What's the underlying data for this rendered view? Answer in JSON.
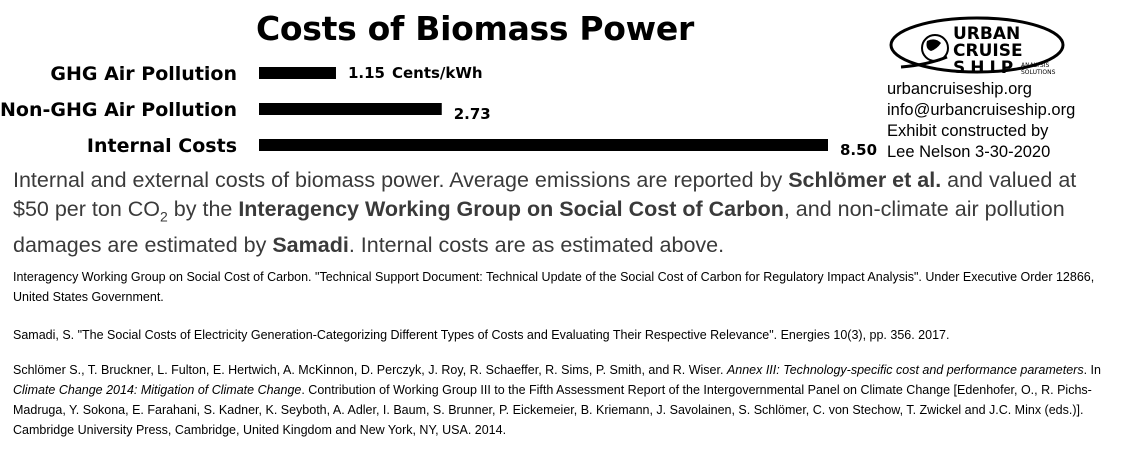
{
  "chart_data": {
    "type": "bar",
    "orientation": "horizontal",
    "title": "Costs of Biomass Power",
    "categories": [
      "GHG Air Pollution",
      "Non-GHG Air Pollution",
      "Internal Costs"
    ],
    "values": [
      1.15,
      2.73,
      8.5
    ],
    "value_labels": [
      "1.15",
      "2.73",
      "8.50"
    ],
    "unit": "Cents/kWh",
    "bar_color": "#000000",
    "axis_range": [
      0,
      8.5
    ],
    "grid": false
  },
  "branding": {
    "logo_text_line1": "URBAN",
    "logo_text_line2": "CRUISE",
    "logo_text_line3": "SHIP",
    "logo_tagline_1": "ANALYSIS",
    "logo_tagline_2": "SOLUTIONS",
    "website": "urbancruiseship.org",
    "email": "info@urbancruiseship.org",
    "credit_line1": "Exhibit constructed by",
    "credit_line2": "Lee Nelson 3-30-2020"
  },
  "caption": {
    "t1": "Internal and external costs of biomass power. Average emissions are reported by ",
    "b1": "Schlömer et al.",
    "t2": " and valued at $50 per ton CO",
    "sub": "2",
    "t3": " by the ",
    "b2": "Interagency Working Group on Social Cost of Carbon",
    "t4": ", and non-climate air pollution damages are estimated by ",
    "b3": "Samadi",
    "t5": ". Internal costs are as estimated above."
  },
  "references": {
    "ref1": "Interagency Working Group on Social Cost of Carbon. \"Technical Support Document: Technical Update of the Social Cost of Carbon for Regulatory Impact Analysis\". Under Executive Order 12866, United States Government.",
    "ref2": "Samadi, S. \"The Social Costs of Electricity Generation-Categorizing Different Types of Costs and Evaluating Their Respective Relevance\". Energies 10(3), pp. 356. 2017.",
    "ref3_a": " Schlömer S., T. Bruckner, L. Fulton, E. Hertwich, A. McKinnon, D. Perczyk, J. Roy, R. Schaeffer, R. Sims, P. Smith, and R. Wiser. ",
    "ref3_i1": "Annex III: Technology-specific cost and performance parameters",
    "ref3_b": ". In ",
    "ref3_i2": "Climate Change 2014: Mitigation of Climate Change",
    "ref3_c": ". Contribution of Working Group III to the Fifth Assessment Report of the Intergovernmental Panel on Climate Change [Edenhofer, O., R. Pichs-Madruga, Y. Sokona, E. Farahani, S. Kadner, K. Seyboth, A. Adler, I. Baum, S. Brunner, P. Eickemeier, B. Kriemann, J. Savolainen, S. Schlömer, C. von Stechow, T. Zwickel and J.C. Minx (eds.)]. Cambridge University Press, Cambridge, United Kingdom and New York, NY, USA. 2014."
  }
}
